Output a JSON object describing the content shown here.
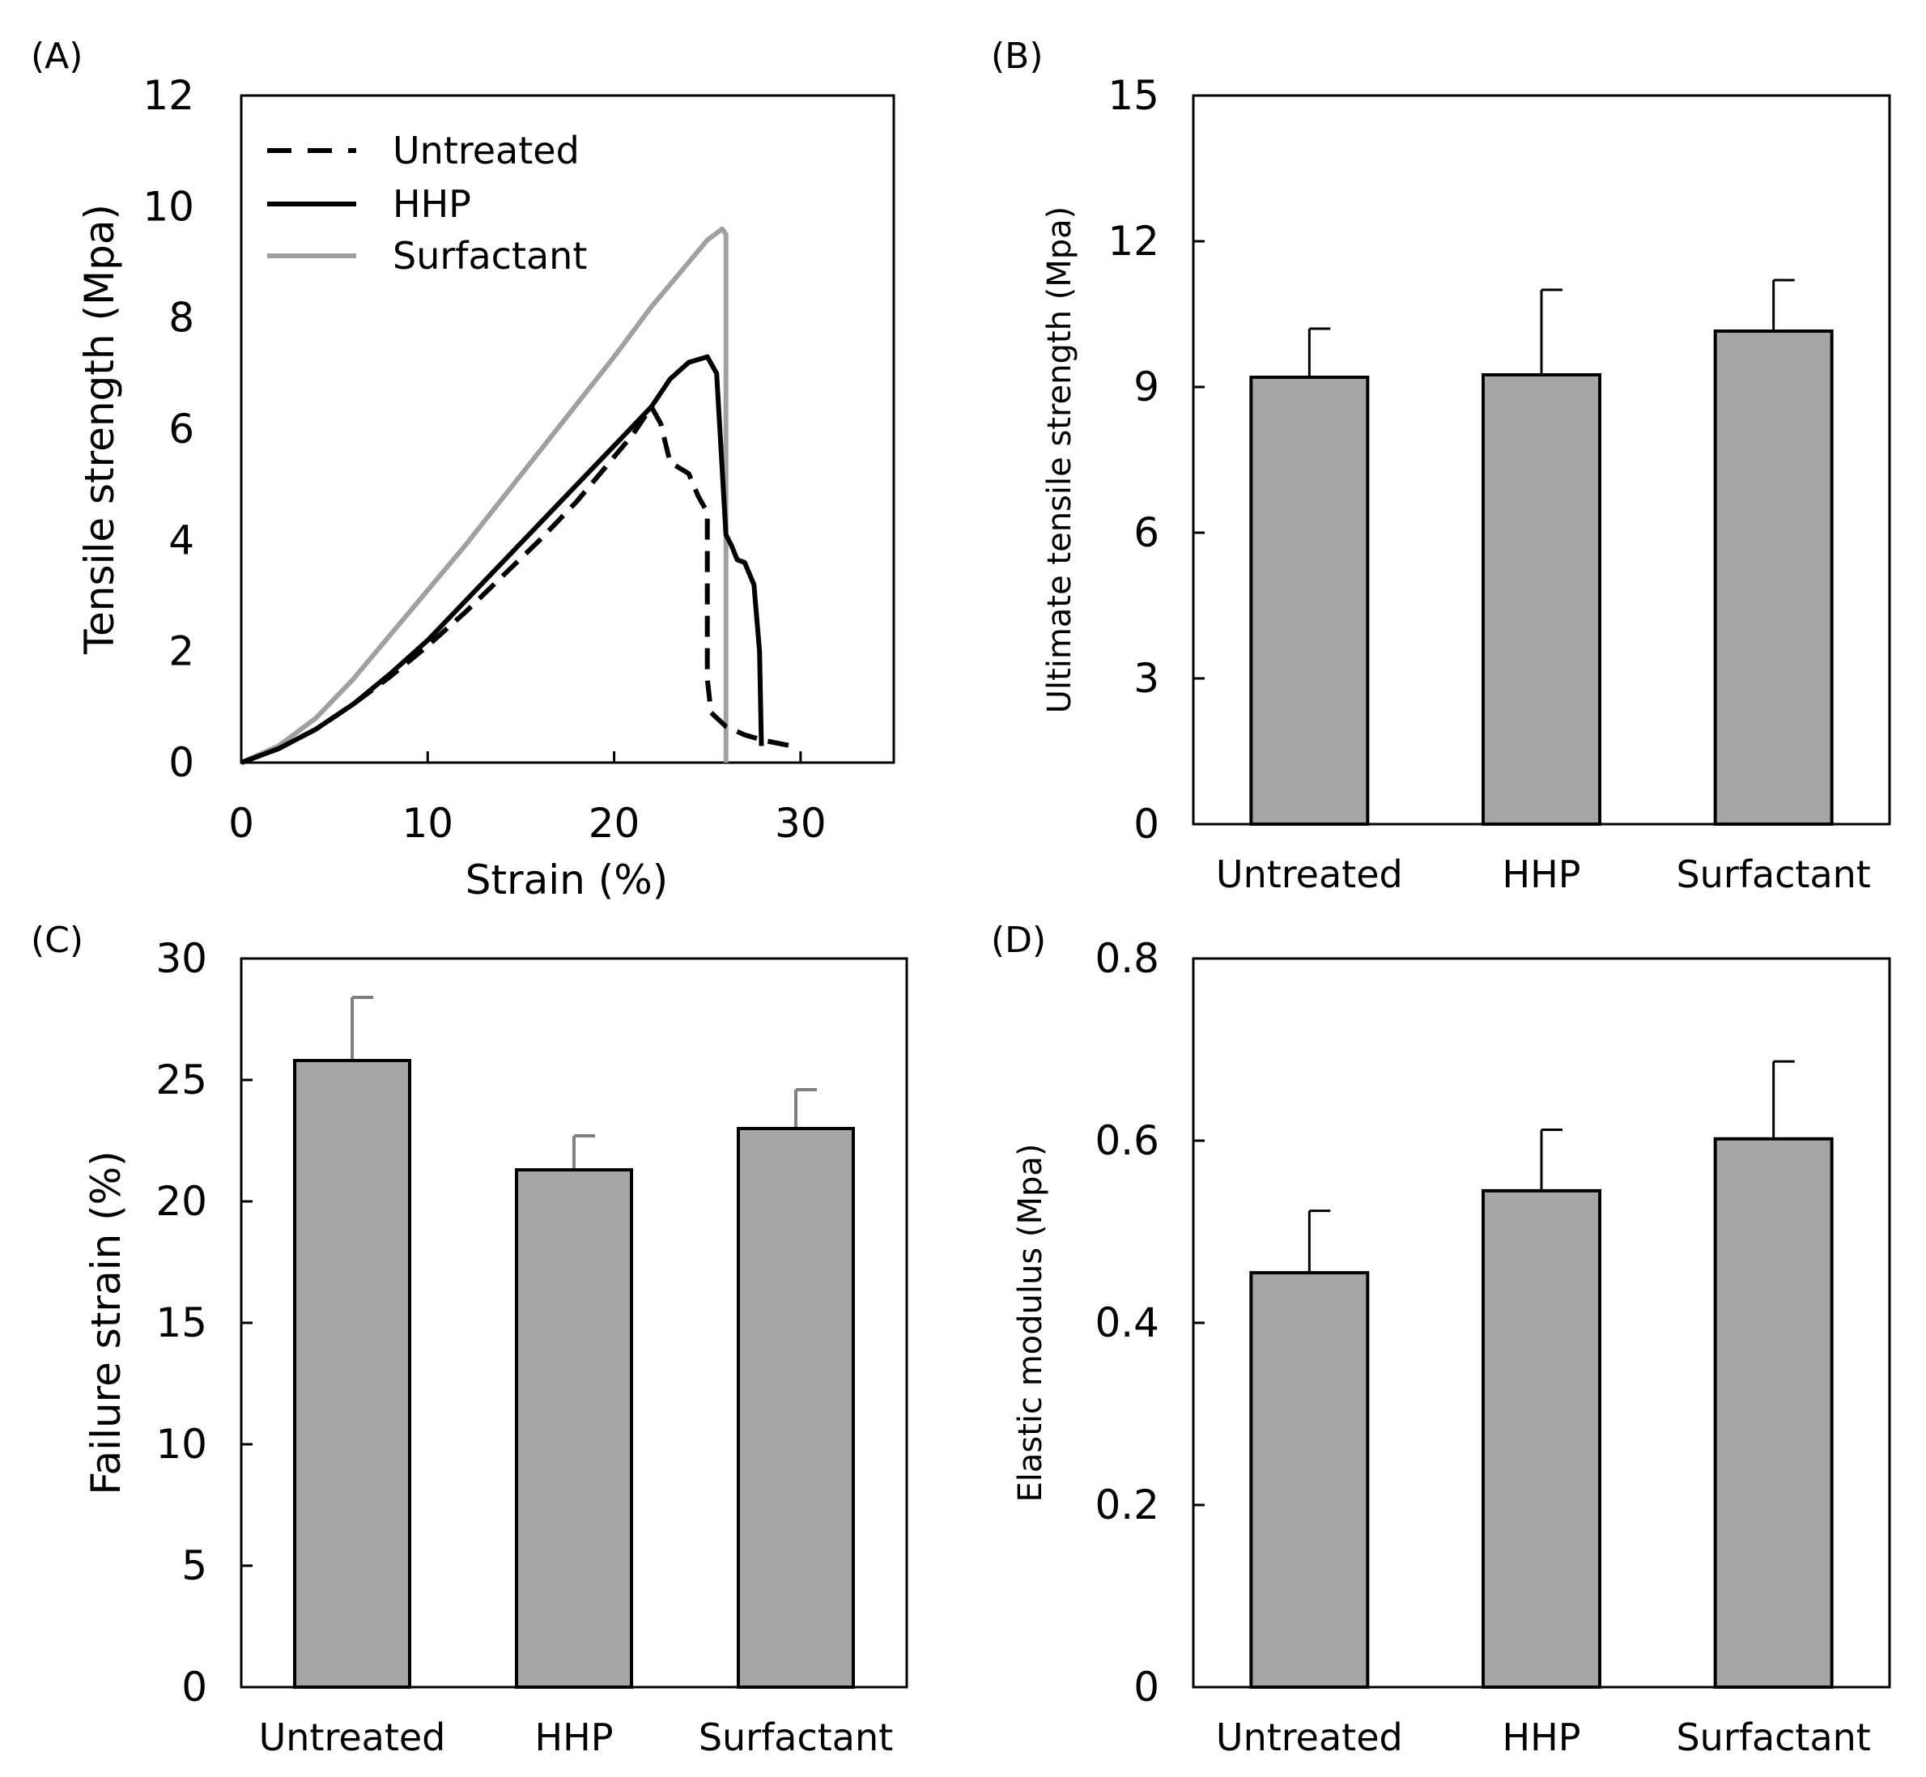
{
  "chart_data": [
    {
      "panel": "(A)",
      "type": "line",
      "xlabel": "Strain (%)",
      "ylabel": "Tensile strength (Mpa)",
      "xlim": [
        0,
        35
      ],
      "ylim": [
        0,
        12
      ],
      "xticks": [
        0,
        10,
        20,
        30
      ],
      "yticks": [
        0,
        2,
        4,
        6,
        8,
        10,
        12
      ],
      "legend_position": "top-left",
      "series": [
        {
          "name": "Untreated",
          "style": "dashed",
          "color": "#000000",
          "points": [
            [
              0,
              0
            ],
            [
              2,
              0.25
            ],
            [
              4,
              0.6
            ],
            [
              6,
              1.05
            ],
            [
              8,
              1.55
            ],
            [
              10,
              2.1
            ],
            [
              12,
              2.7
            ],
            [
              14,
              3.35
            ],
            [
              16,
              4.0
            ],
            [
              18,
              4.7
            ],
            [
              20,
              5.5
            ],
            [
              21,
              5.9
            ],
            [
              22,
              6.4
            ],
            [
              22.5,
              6.1
            ],
            [
              23,
              5.4
            ],
            [
              24,
              5.2
            ],
            [
              24.5,
              4.8
            ],
            [
              25,
              4.5
            ],
            [
              25,
              3.5
            ],
            [
              25,
              1.5
            ],
            [
              25.2,
              0.9
            ],
            [
              26,
              0.65
            ],
            [
              27,
              0.5
            ],
            [
              28,
              0.4
            ],
            [
              29.5,
              0.3
            ]
          ]
        },
        {
          "name": "HHP",
          "style": "solid",
          "color": "#000000",
          "points": [
            [
              0,
              0
            ],
            [
              2,
              0.25
            ],
            [
              4,
              0.6
            ],
            [
              6,
              1.05
            ],
            [
              8,
              1.6
            ],
            [
              10,
              2.2
            ],
            [
              12,
              2.9
            ],
            [
              14,
              3.6
            ],
            [
              16,
              4.3
            ],
            [
              18,
              5.0
            ],
            [
              20,
              5.7
            ],
            [
              22,
              6.4
            ],
            [
              23,
              6.9
            ],
            [
              24,
              7.2
            ],
            [
              25,
              7.3
            ],
            [
              25.5,
              7.0
            ],
            [
              26,
              4.1
            ],
            [
              26.3,
              3.9
            ],
            [
              26.6,
              3.65
            ],
            [
              27,
              3.6
            ],
            [
              27.5,
              3.2
            ],
            [
              27.8,
              2.0
            ],
            [
              27.9,
              0.3
            ]
          ]
        },
        {
          "name": "Surfactant",
          "style": "solid",
          "color": "#a0a0a0",
          "points": [
            [
              0,
              0
            ],
            [
              2,
              0.3
            ],
            [
              4,
              0.8
            ],
            [
              6,
              1.5
            ],
            [
              8,
              2.3
            ],
            [
              10,
              3.1
            ],
            [
              12,
              3.9
            ],
            [
              14,
              4.75
            ],
            [
              16,
              5.6
            ],
            [
              18,
              6.45
            ],
            [
              20,
              7.3
            ],
            [
              22,
              8.2
            ],
            [
              23,
              8.6
            ],
            [
              24,
              9.0
            ],
            [
              25,
              9.4
            ],
            [
              25.8,
              9.6
            ],
            [
              26,
              9.5
            ],
            [
              26,
              5.0
            ],
            [
              26,
              0.0
            ]
          ]
        }
      ]
    },
    {
      "panel": "(B)",
      "type": "bar",
      "ylabel": "Ultimate tensile strength (Mpa)",
      "categories": [
        "Untreated",
        "HHP",
        "Surfactant"
      ],
      "values": [
        9.2,
        9.25,
        10.15
      ],
      "errors": [
        1.0,
        1.75,
        1.05
      ],
      "ylim": [
        0,
        15
      ],
      "yticks": [
        0,
        3,
        6,
        9,
        12,
        15
      ]
    },
    {
      "panel": "(C)",
      "type": "bar",
      "ylabel": "Failure strain (%)",
      "categories": [
        "Untreated",
        "HHP",
        "Surfactant"
      ],
      "values": [
        25.8,
        21.3,
        23.0
      ],
      "errors": [
        2.6,
        1.4,
        1.6
      ],
      "ylim": [
        0,
        30
      ],
      "yticks": [
        0,
        5,
        10,
        15,
        20,
        25,
        30
      ],
      "error_color": "#808080"
    },
    {
      "panel": "(D)",
      "type": "bar",
      "ylabel": "Elastic modulus (Mpa)",
      "categories": [
        "Untreated",
        "HHP",
        "Surfactant"
      ],
      "values": [
        0.455,
        0.545,
        0.602
      ],
      "errors": [
        0.068,
        0.067,
        0.085
      ],
      "ylim": [
        0,
        0.8
      ],
      "yticks": [
        0,
        0.2,
        0.4,
        0.6,
        0.8
      ],
      "yticklabels": [
        "0",
        "0.2",
        "0.4",
        "0.6",
        "0.8"
      ]
    }
  ]
}
